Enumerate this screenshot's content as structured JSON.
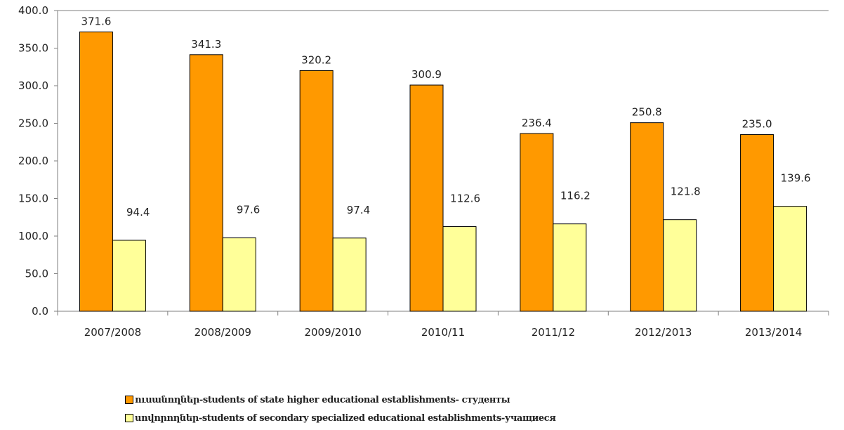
{
  "chart_data": {
    "type": "bar",
    "categories": [
      "2007/2008",
      "2008/2009",
      "2009/2010",
      "2010/11",
      "2011/12",
      "2012/2013",
      "2013/2014"
    ],
    "series": [
      {
        "name": "ուսանողներ-students of state higher educational establishments- студенты",
        "values": [
          371.6,
          341.3,
          320.2,
          300.9,
          236.4,
          250.8,
          235.0
        ],
        "color": "#ff9900"
      },
      {
        "name": "սովորողներ-students of secondary specialized educational establishments-учащиеся",
        "values": [
          94.4,
          97.6,
          97.4,
          112.6,
          116.2,
          121.8,
          139.6
        ],
        "color": "#ffff99"
      }
    ],
    "data_labels": [
      [
        "371.6",
        "341.3",
        "320.2",
        "300.9",
        "236.4",
        "250.8",
        "235.0"
      ],
      [
        "94.4",
        "97.6",
        "97.4",
        "112.6",
        "116.2",
        "121.8",
        "139.6"
      ]
    ],
    "y_ticks": [
      "0.0",
      "50.0",
      "100.0",
      "150.0",
      "200.0",
      "250.0",
      "300.0",
      "350.0",
      "400.0"
    ],
    "ylim": [
      0,
      400
    ],
    "grid": false,
    "legend_position": "bottom",
    "title": "",
    "xlabel": "",
    "ylabel": ""
  }
}
